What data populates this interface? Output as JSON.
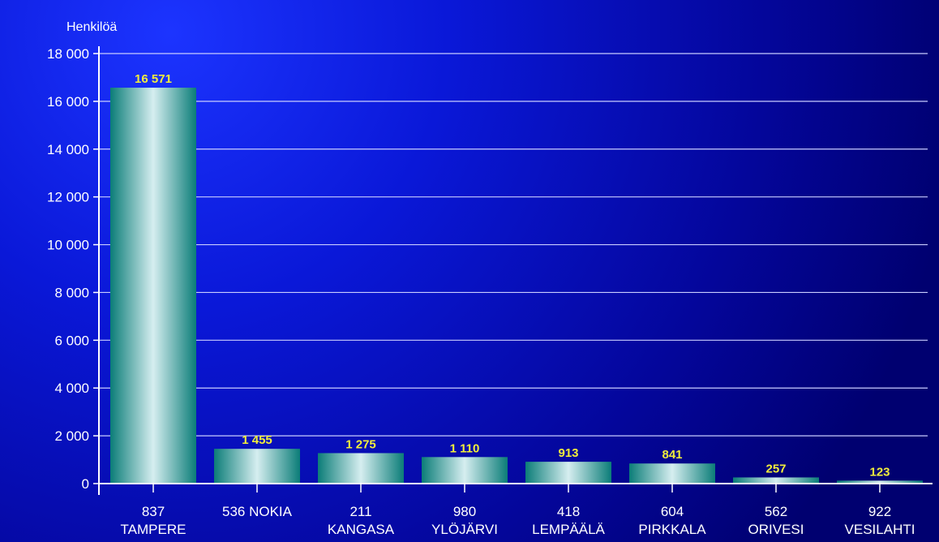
{
  "chart_data": {
    "type": "bar",
    "title": "",
    "xlabel": "",
    "ylabel": "Henkilöä",
    "categories": [
      [
        "837",
        "TAMPERE"
      ],
      [
        "536 NOKIA"
      ],
      [
        "211",
        "KANGASA"
      ],
      [
        "980",
        "YLÖJÄRVI"
      ],
      [
        "418",
        "LEMPÄÄLÄ"
      ],
      [
        "604",
        "PIRKKALA"
      ],
      [
        "562",
        "ORIVESI"
      ],
      [
        "922",
        "VESILAHTI"
      ]
    ],
    "values": [
      16571,
      1455,
      1275,
      1110,
      913,
      841,
      257,
      123
    ],
    "value_labels": [
      "16 571",
      "1 455",
      "1 275",
      "1 110",
      "913",
      "841",
      "257",
      "123"
    ],
    "ylim": [
      0,
      18000
    ],
    "yticks": [
      0,
      2000,
      4000,
      6000,
      8000,
      10000,
      12000,
      14000,
      16000,
      18000
    ],
    "ytick_labels": [
      "0",
      "2 000",
      "4 000",
      "6 000",
      "8 000",
      "10 000",
      "12 000",
      "14 000",
      "16 000",
      "18 000"
    ],
    "grid": true,
    "legend": "none",
    "colors": {
      "background_dark": "#00007a",
      "background_glow": "#1a2eff",
      "bar_edge": "#0b7d78",
      "bar_center": "#d6eef0",
      "value_label": "#f2ee3c",
      "text": "#ffffff"
    }
  }
}
